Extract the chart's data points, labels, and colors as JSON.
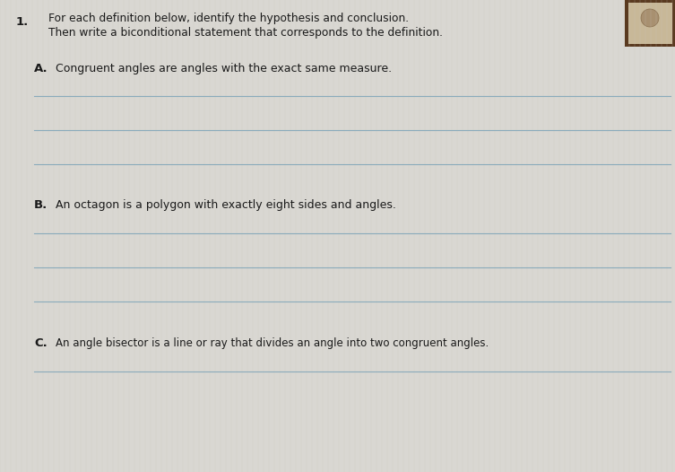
{
  "background_color": "#e0ddd8",
  "page_color": "#dcdad5",
  "number": "1.",
  "instruction_line1": "For each definition below, identify the hypothesis and conclusion.",
  "instruction_line2": "Then write a biconditional statement that corresponds to the definition.",
  "section_A_label": "A.",
  "section_A_text": "Congruent angles are angles with the exact same measure.",
  "section_B_label": "B.",
  "section_B_text": "An octagon is a polygon with exactly eight sides and angles.",
  "section_C_label": "C.",
  "section_C_text": "An angle bisector is a line or ray that divides an angle into two congruent angles.",
  "line_color": "#8aabbb",
  "text_color": "#1a1a1a",
  "number_fontsize": 9.5,
  "instruction_fontsize": 8.8,
  "section_label_fontsize": 9.5,
  "section_text_fontsize": 9.0,
  "figwidth": 7.53,
  "figheight": 5.26,
  "dpi": 100
}
